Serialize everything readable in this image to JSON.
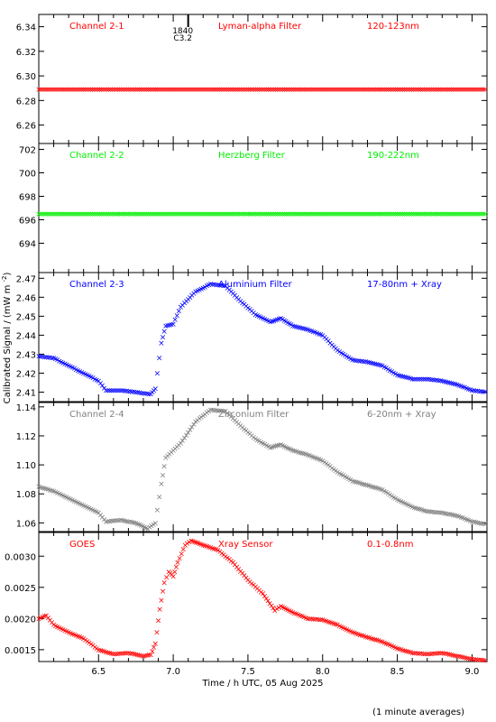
{
  "chart_data": {
    "type": "scatter",
    "xlabel": "Time / h UTC, 05 Aug 2025",
    "ylabel": "Calibrated Signal / (mW m",
    "ylabel_sup": "-2",
    "ylabel_close": ")",
    "note": "(1 minute averages)",
    "xlim": [
      6.1,
      9.1
    ],
    "xticks": [
      6.5,
      7.0,
      7.5,
      8.0,
      8.5,
      9.0
    ],
    "xticklabels": [
      "6.5",
      "7.0",
      "7.5",
      "8.0",
      "8.5",
      "9.0"
    ],
    "event_marker": {
      "x": 7.1,
      "label_top": "1840",
      "label_bottom": "C3.2"
    },
    "marker": "x",
    "panels": [
      {
        "channel": "Channel 2-1",
        "filter": "Lyman-alpha Filter",
        "band": "120-123nm",
        "color": "#ff0000",
        "ylim": [
          6.245,
          6.35
        ],
        "yticks": [
          6.26,
          6.28,
          6.3,
          6.32,
          6.34
        ],
        "yticklabels": [
          "6.26",
          "6.28",
          "6.30",
          "6.32",
          "6.34"
        ],
        "points": [
          [
            6.1,
            6.289
          ],
          [
            9.1,
            6.289
          ]
        ]
      },
      {
        "channel": "Channel 2-2",
        "filter": "Herzberg Filter",
        "band": "190-222nm",
        "color": "#00ee00",
        "ylim": [
          691.5,
          702.5
        ],
        "yticks": [
          694,
          696,
          698,
          700,
          702
        ],
        "yticklabels": [
          "694",
          "696",
          "698",
          "700",
          "702"
        ],
        "points": [
          [
            6.1,
            696.5
          ],
          [
            9.1,
            696.5
          ]
        ]
      },
      {
        "channel": "Channel 2-3",
        "filter": "Aluminium Filter",
        "band": "17-80nm + Xray",
        "color": "#0000ff",
        "ylim": [
          2.405,
          2.473
        ],
        "yticks": [
          2.41,
          2.42,
          2.43,
          2.44,
          2.45,
          2.46,
          2.47
        ],
        "yticklabels": [
          "2.41",
          "2.42",
          "2.43",
          "2.44",
          "2.45",
          "2.46",
          "2.47"
        ],
        "points": [
          [
            6.1,
            2.429
          ],
          [
            6.2,
            2.428
          ],
          [
            6.3,
            2.424
          ],
          [
            6.4,
            2.42
          ],
          [
            6.5,
            2.416
          ],
          [
            6.55,
            2.411
          ],
          [
            6.65,
            2.411
          ],
          [
            6.75,
            2.41
          ],
          [
            6.85,
            2.409
          ],
          [
            6.88,
            2.412
          ],
          [
            6.92,
            2.436
          ],
          [
            6.95,
            2.445
          ],
          [
            7.0,
            2.446
          ],
          [
            7.05,
            2.455
          ],
          [
            7.15,
            2.463
          ],
          [
            7.25,
            2.467
          ],
          [
            7.35,
            2.466
          ],
          [
            7.45,
            2.458
          ],
          [
            7.55,
            2.451
          ],
          [
            7.65,
            2.447
          ],
          [
            7.72,
            2.449
          ],
          [
            7.8,
            2.445
          ],
          [
            7.9,
            2.443
          ],
          [
            8.0,
            2.44
          ],
          [
            8.1,
            2.432
          ],
          [
            8.2,
            2.427
          ],
          [
            8.3,
            2.426
          ],
          [
            8.4,
            2.424
          ],
          [
            8.5,
            2.419
          ],
          [
            8.6,
            2.417
          ],
          [
            8.7,
            2.417
          ],
          [
            8.8,
            2.416
          ],
          [
            8.9,
            2.414
          ],
          [
            9.0,
            2.411
          ],
          [
            9.1,
            2.41
          ]
        ]
      },
      {
        "channel": "Channel 2-4",
        "filter": "Zirconium Filter",
        "band": "6-20nm + Xray",
        "color": "#808080",
        "ylim": [
          1.054,
          1.143
        ],
        "yticks": [
          1.06,
          1.08,
          1.1,
          1.12,
          1.14
        ],
        "yticklabels": [
          "1.06",
          "1.08",
          "1.10",
          "1.12",
          "1.14"
        ],
        "points": [
          [
            6.1,
            1.085
          ],
          [
            6.2,
            1.082
          ],
          [
            6.3,
            1.077
          ],
          [
            6.4,
            1.072
          ],
          [
            6.5,
            1.067
          ],
          [
            6.55,
            1.061
          ],
          [
            6.65,
            1.062
          ],
          [
            6.75,
            1.06
          ],
          [
            6.83,
            1.056
          ],
          [
            6.88,
            1.06
          ],
          [
            6.92,
            1.087
          ],
          [
            6.95,
            1.105
          ],
          [
            7.0,
            1.11
          ],
          [
            7.05,
            1.115
          ],
          [
            7.15,
            1.13
          ],
          [
            7.25,
            1.138
          ],
          [
            7.35,
            1.137
          ],
          [
            7.45,
            1.127
          ],
          [
            7.55,
            1.118
          ],
          [
            7.65,
            1.112
          ],
          [
            7.72,
            1.114
          ],
          [
            7.8,
            1.11
          ],
          [
            7.9,
            1.107
          ],
          [
            8.0,
            1.103
          ],
          [
            8.1,
            1.095
          ],
          [
            8.2,
            1.089
          ],
          [
            8.3,
            1.086
          ],
          [
            8.4,
            1.083
          ],
          [
            8.5,
            1.076
          ],
          [
            8.6,
            1.071
          ],
          [
            8.7,
            1.068
          ],
          [
            8.8,
            1.067
          ],
          [
            8.9,
            1.065
          ],
          [
            9.0,
            1.061
          ],
          [
            9.1,
            1.059
          ]
        ]
      },
      {
        "channel": "GOES",
        "filter": "Xray Sensor",
        "band": "0.1-0.8nm",
        "color": "#ff0000",
        "ylim": [
          0.00131,
          0.00338
        ],
        "yticks": [
          0.0015,
          0.002,
          0.0025,
          0.003
        ],
        "yticklabels": [
          "0.0015",
          "0.0020",
          "0.0025",
          "0.0030"
        ],
        "points": [
          [
            6.1,
            0.002
          ],
          [
            6.15,
            0.00205
          ],
          [
            6.2,
            0.0019
          ],
          [
            6.3,
            0.00178
          ],
          [
            6.4,
            0.00168
          ],
          [
            6.5,
            0.0015
          ],
          [
            6.6,
            0.00143
          ],
          [
            6.7,
            0.00145
          ],
          [
            6.8,
            0.0014
          ],
          [
            6.85,
            0.00142
          ],
          [
            6.88,
            0.0016
          ],
          [
            6.91,
            0.00215
          ],
          [
            6.94,
            0.00258
          ],
          [
            6.97,
            0.00275
          ],
          [
            7.0,
            0.00268
          ],
          [
            7.03,
            0.0029
          ],
          [
            7.08,
            0.00318
          ],
          [
            7.12,
            0.00325
          ],
          [
            7.2,
            0.00318
          ],
          [
            7.3,
            0.0031
          ],
          [
            7.4,
            0.0029
          ],
          [
            7.5,
            0.00262
          ],
          [
            7.6,
            0.0024
          ],
          [
            7.68,
            0.00213
          ],
          [
            7.72,
            0.0022
          ],
          [
            7.8,
            0.0021
          ],
          [
            7.9,
            0.002
          ],
          [
            8.0,
            0.00198
          ],
          [
            8.1,
            0.0019
          ],
          [
            8.2,
            0.00178
          ],
          [
            8.3,
            0.0017
          ],
          [
            8.4,
            0.00163
          ],
          [
            8.5,
            0.00152
          ],
          [
            8.6,
            0.00145
          ],
          [
            8.7,
            0.00143
          ],
          [
            8.8,
            0.00145
          ],
          [
            8.9,
            0.0014
          ],
          [
            9.0,
            0.00135
          ],
          [
            9.1,
            0.00133
          ]
        ]
      }
    ]
  }
}
